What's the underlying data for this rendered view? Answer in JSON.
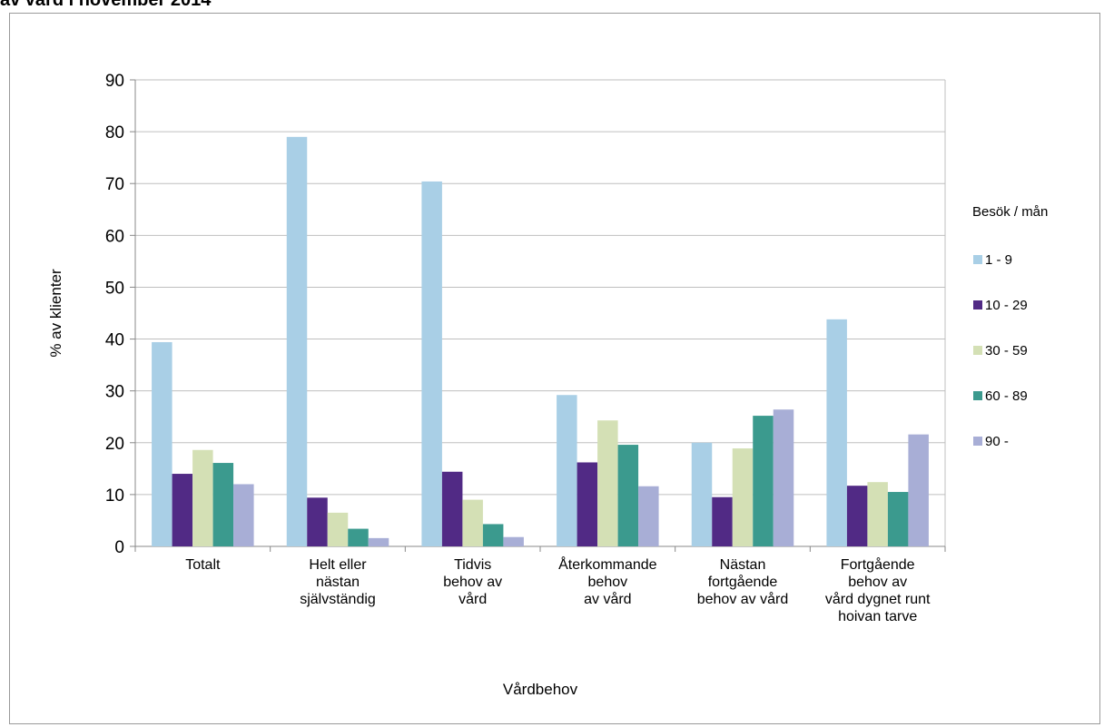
{
  "header": {
    "title_fragment": "av vård i november 2014"
  },
  "chart_data": {
    "type": "bar",
    "title": "",
    "xlabel": "Vårdbehov",
    "ylabel": "% av klienter",
    "ylim": [
      0,
      90
    ],
    "yticks": [
      0,
      10,
      20,
      30,
      40,
      50,
      60,
      70,
      80,
      90
    ],
    "grid": true,
    "legend_title": "Besök / mån",
    "legend_position": "right",
    "categories": [
      [
        "Totalt"
      ],
      [
        "Helt eller",
        "nästan",
        "självständig"
      ],
      [
        "Tidvis",
        "behov av",
        "vård"
      ],
      [
        "Återkommande",
        "behov",
        "av vård"
      ],
      [
        "Nästan",
        "fortgående",
        "behov av vård"
      ],
      [
        "Fortgående",
        "behov av",
        "vård dygnet runt",
        "hoivan tarve"
      ]
    ],
    "series": [
      {
        "name": "1 - 9",
        "color": "#a9cfe6",
        "values": [
          39.4,
          79.0,
          70.4,
          29.2,
          20.0,
          43.8
        ]
      },
      {
        "name": "10 - 29",
        "color": "#512a85",
        "values": [
          14.0,
          9.4,
          14.4,
          16.2,
          9.5,
          11.7
        ]
      },
      {
        "name": "30 - 59",
        "color": "#d4e0b5",
        "values": [
          18.6,
          6.5,
          9.0,
          24.3,
          18.9,
          12.4
        ]
      },
      {
        "name": "60 - 89",
        "color": "#3b9a8e",
        "values": [
          16.1,
          3.4,
          4.3,
          19.6,
          25.2,
          10.5
        ]
      },
      {
        "name": "90 -",
        "color": "#a8aed6",
        "values": [
          12.0,
          1.6,
          1.8,
          11.6,
          26.4,
          21.6
        ]
      }
    ]
  }
}
